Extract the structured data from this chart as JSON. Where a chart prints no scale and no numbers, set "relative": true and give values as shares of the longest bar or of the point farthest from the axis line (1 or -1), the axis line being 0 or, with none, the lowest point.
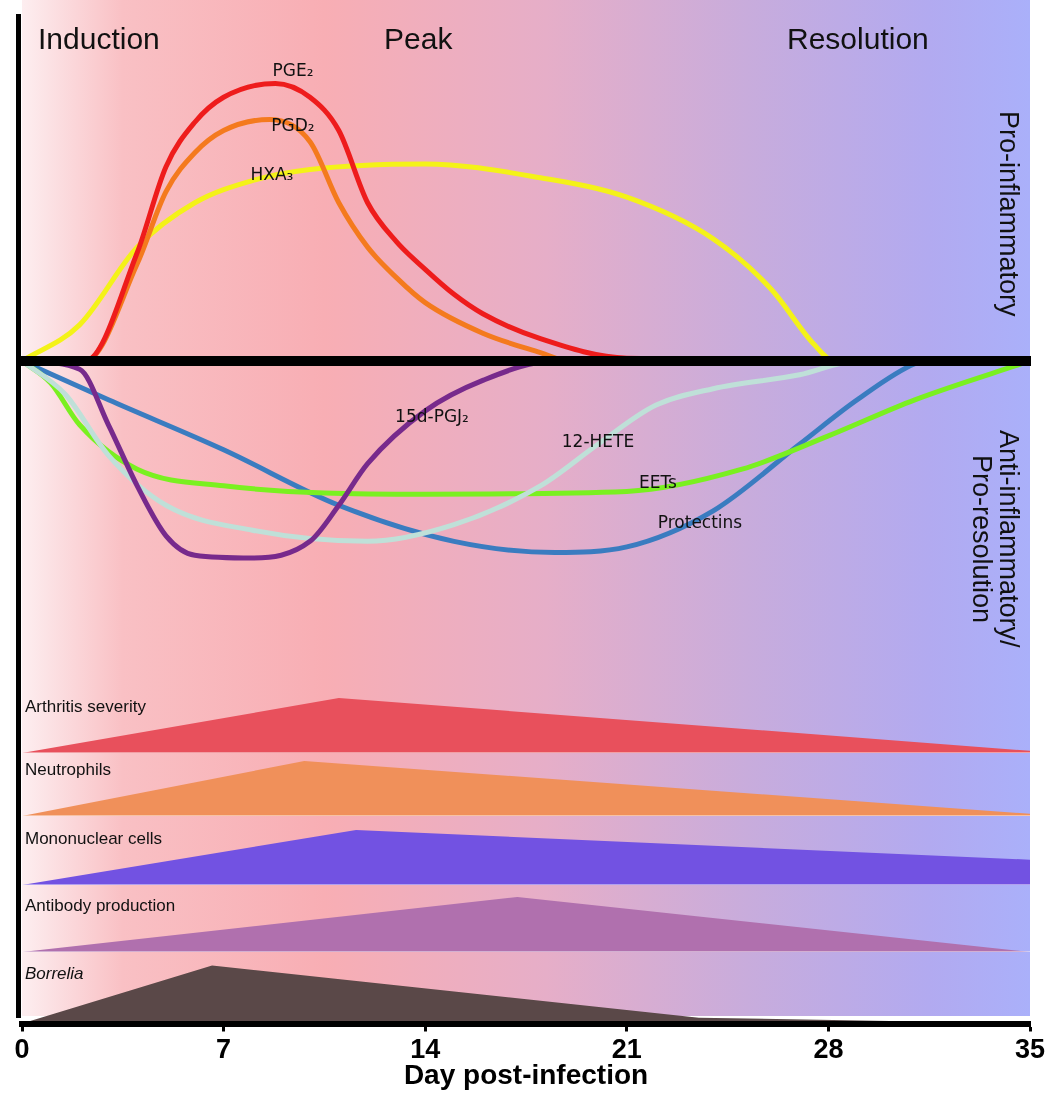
{
  "chart_data": [
    {
      "type": "line",
      "relative": true,
      "xlim": [
        0,
        35
      ],
      "xticks": [
        0,
        7,
        14,
        21,
        28,
        35
      ],
      "tick_labels": false,
      "marker": "none",
      "annotations": [
        "Induction",
        "Peak",
        "Resolution",
        "Pro-inflammatory",
        "Anti-inflammatory/ Pro-resolution"
      ],
      "series": [
        {
          "name": "PGE₂",
          "color": "#ee1c1c",
          "x": [
            0,
            2.2,
            4,
            5,
            6,
            7,
            8.8,
            10,
            11,
            12,
            13,
            14,
            15,
            16,
            18,
            21,
            35
          ],
          "values": [
            0,
            0,
            0.39,
            0.7,
            0.86,
            0.95,
            1,
            0.95,
            0.83,
            0.57,
            0.43,
            0.33,
            0.24,
            0.17,
            0.08,
            0.01,
            0
          ]
        },
        {
          "name": "PGD₂",
          "color": "#f47a1e",
          "x": [
            0,
            2.2,
            4,
            5,
            6,
            7,
            8.6,
            10,
            11,
            12,
            13,
            14,
            16,
            18,
            19,
            35
          ],
          "values": [
            0,
            0,
            0.35,
            0.61,
            0.75,
            0.83,
            0.87,
            0.79,
            0.57,
            0.41,
            0.3,
            0.21,
            0.1,
            0.03,
            0,
            0
          ]
        },
        {
          "name": "HXA₃",
          "color": "#f4f218",
          "x": [
            0,
            2,
            4,
            6,
            8,
            10,
            14,
            18,
            21,
            24,
            26,
            27.5,
            28.2,
            35
          ],
          "values": [
            0,
            0.13,
            0.41,
            0.57,
            0.65,
            0.69,
            0.71,
            0.66,
            0.59,
            0.44,
            0.26,
            0.06,
            0,
            0
          ]
        },
        {
          "name": "15d-PGJ₂",
          "color": "#772a8c",
          "x": [
            0,
            2,
            3,
            4,
            5,
            6,
            8,
            10,
            11,
            12,
            14,
            16,
            18.5,
            35
          ],
          "values": [
            0,
            -0.03,
            -0.23,
            -0.45,
            -0.63,
            -0.7,
            -0.71,
            -0.65,
            -0.52,
            -0.37,
            -0.18,
            -0.07,
            0,
            0
          ]
        },
        {
          "name": "12-HETE",
          "color": "#bfe0d8",
          "x": [
            0,
            1.5,
            3,
            5,
            8,
            12,
            15,
            18,
            20,
            22,
            24,
            27,
            29,
            35
          ],
          "values": [
            0,
            -0.12,
            -0.34,
            -0.52,
            -0.61,
            -0.65,
            -0.59,
            -0.45,
            -0.3,
            -0.16,
            -0.1,
            -0.05,
            0,
            0
          ]
        },
        {
          "name": "EETs",
          "color": "#7af020",
          "x": [
            0,
            1,
            2,
            4,
            7,
            14,
            21,
            25,
            28,
            31,
            35
          ],
          "values": [
            0,
            -0.08,
            -0.23,
            -0.39,
            -0.45,
            -0.48,
            -0.47,
            -0.39,
            -0.27,
            -0.14,
            0
          ]
        },
        {
          "name": "Protectins",
          "color": "#3a7cc0",
          "x": [
            0,
            3,
            7,
            11,
            15,
            18.5,
            21,
            24,
            27,
            29,
            31,
            31.5,
            35
          ],
          "values": [
            0,
            -0.14,
            -0.32,
            -0.52,
            -0.65,
            -0.69,
            -0.67,
            -0.54,
            -0.3,
            -0.14,
            -0.01,
            0,
            0
          ]
        }
      ]
    },
    {
      "type": "area",
      "relative": true,
      "xlim": [
        0,
        35
      ],
      "xticks": [
        0,
        7,
        14,
        21,
        28,
        35
      ],
      "tick_labels": false,
      "series": [
        {
          "name": "Arthritis severity",
          "color": "#e8505c",
          "x": [
            0,
            11,
            35
          ],
          "values": [
            0,
            1,
            0.04
          ]
        }
      ]
    },
    {
      "type": "area",
      "relative": true,
      "xlim": [
        0,
        35
      ],
      "xticks": [
        0,
        7,
        14,
        21,
        28,
        35
      ],
      "tick_labels": false,
      "series": [
        {
          "name": "Neutrophils",
          "color": "#f0905a",
          "x": [
            0,
            9.8,
            35
          ],
          "values": [
            0,
            1,
            0.04
          ]
        }
      ]
    },
    {
      "type": "area",
      "relative": true,
      "xlim": [
        0,
        35
      ],
      "xticks": [
        0,
        7,
        14,
        21,
        28,
        35
      ],
      "tick_labels": false,
      "series": [
        {
          "name": "Mononuclear cells",
          "color": "#7252e2",
          "x": [
            0,
            11.6,
            35
          ],
          "values": [
            0,
            1,
            0.46
          ]
        }
      ]
    },
    {
      "type": "area",
      "relative": true,
      "xlim": [
        0,
        35
      ],
      "xticks": [
        0,
        7,
        14,
        21,
        28,
        35
      ],
      "tick_labels": false,
      "series": [
        {
          "name": "Antibody production",
          "color": "#b070ae",
          "x": [
            0,
            17.2,
            35
          ],
          "values": [
            0,
            1,
            0
          ]
        }
      ]
    },
    {
      "type": "area",
      "relative": true,
      "xlim": [
        0,
        35
      ],
      "xticks": [
        0,
        7,
        14,
        21,
        28,
        35
      ],
      "tick_labels": "x",
      "xlabel": "Day post-infection",
      "series": [
        {
          "name": "Borrelia",
          "color": "#5a4848",
          "x": [
            0,
            6.6,
            23.5,
            35
          ],
          "values": [
            0,
            1,
            0.1,
            0
          ]
        }
      ]
    }
  ]
}
